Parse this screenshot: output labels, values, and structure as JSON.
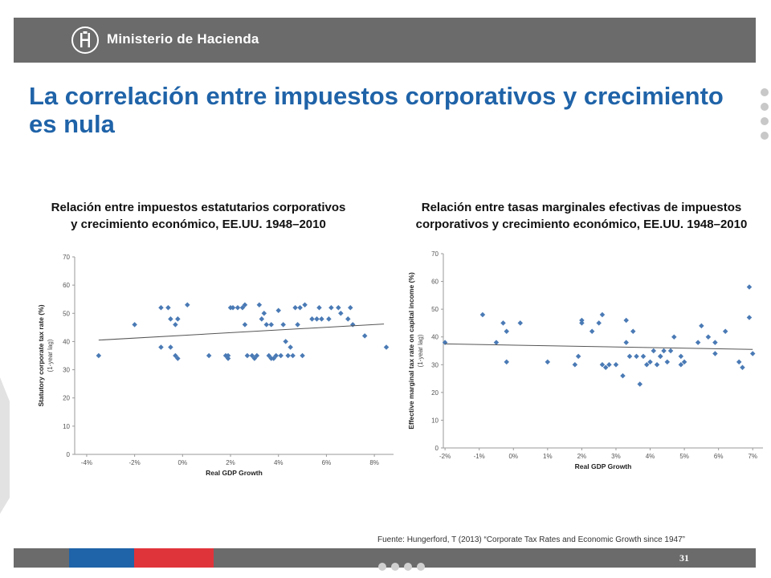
{
  "header": {
    "brand": "Ministerio de Hacienda",
    "logo_icon": "crest-icon",
    "bar_color": "#6b6b6b"
  },
  "slide": {
    "title": "La correlación entre impuestos corporativos y crecimiento es nula",
    "title_color": "#1f63a8",
    "page_number": "31"
  },
  "footer": {
    "source": "Fuente: Hungerford, T (2013) “Corporate Tax Rates and Economic Growth since 1947”",
    "stripe_colors": [
      "#1f63a8",
      "#e0343b"
    ]
  },
  "chart_data": [
    {
      "type": "scatter",
      "title": "Relación entre impuestos estatutarios corporativos y crecimiento económico, EE.UU. 1948–2010",
      "xlabel": "Real GDP Growth",
      "ylabel": "Statutory corporate tax rate (%)",
      "ylabel2": "(1-year lag)",
      "xlim": [
        -4.5,
        8.8
      ],
      "ylim": [
        0,
        70
      ],
      "xticks": [
        -4,
        -2,
        0,
        2,
        4,
        6,
        8
      ],
      "xtick_labels": [
        "-4%",
        "-2%",
        "0%",
        "2%",
        "4%",
        "6%",
        "8%"
      ],
      "yticks": [
        0,
        10,
        20,
        30,
        40,
        50,
        60,
        70
      ],
      "grid": false,
      "point_color": "#4a7ab5",
      "trend": {
        "x": [
          -3.5,
          8.4
        ],
        "y": [
          40.5,
          46.2
        ]
      },
      "points": [
        [
          -3.5,
          35
        ],
        [
          -2.0,
          46
        ],
        [
          -0.9,
          52
        ],
        [
          -0.6,
          52
        ],
        [
          -0.5,
          48
        ],
        [
          -0.3,
          46
        ],
        [
          -0.2,
          48
        ],
        [
          0.2,
          53
        ],
        [
          -0.9,
          38
        ],
        [
          -0.5,
          38
        ],
        [
          -0.3,
          35
        ],
        [
          -0.2,
          34
        ],
        [
          1.1,
          35
        ],
        [
          1.8,
          35
        ],
        [
          1.9,
          34
        ],
        [
          1.9,
          35
        ],
        [
          2.0,
          52
        ],
        [
          2.1,
          52
        ],
        [
          2.3,
          52
        ],
        [
          2.5,
          52
        ],
        [
          2.6,
          53
        ],
        [
          2.7,
          35
        ],
        [
          2.6,
          46
        ],
        [
          2.9,
          35
        ],
        [
          3.0,
          34
        ],
        [
          3.1,
          35
        ],
        [
          3.2,
          53
        ],
        [
          3.3,
          48
        ],
        [
          3.5,
          46
        ],
        [
          3.4,
          50
        ],
        [
          3.7,
          34
        ],
        [
          3.8,
          34
        ],
        [
          3.7,
          46
        ],
        [
          3.6,
          35
        ],
        [
          3.9,
          35
        ],
        [
          4.0,
          51
        ],
        [
          4.1,
          35
        ],
        [
          4.2,
          46
        ],
        [
          4.3,
          40
        ],
        [
          4.4,
          35
        ],
        [
          4.5,
          38
        ],
        [
          4.6,
          35
        ],
        [
          4.7,
          52
        ],
        [
          4.8,
          46
        ],
        [
          4.9,
          52
        ],
        [
          5.0,
          35
        ],
        [
          5.1,
          53
        ],
        [
          5.4,
          48
        ],
        [
          5.6,
          48
        ],
        [
          5.7,
          52
        ],
        [
          5.8,
          48
        ],
        [
          6.1,
          48
        ],
        [
          6.2,
          52
        ],
        [
          6.5,
          52
        ],
        [
          6.6,
          50
        ],
        [
          6.9,
          48
        ],
        [
          7.0,
          52
        ],
        [
          7.1,
          46
        ],
        [
          7.6,
          42
        ],
        [
          8.5,
          38
        ]
      ]
    },
    {
      "type": "scatter",
      "title": "Relación entre tasas marginales efectivas de impuestos corporativos y crecimiento económico, EE.UU. 1948–2010",
      "xlabel": "Real GDP Growth",
      "ylabel": "Effective marginal tax rate on capital income (%)",
      "ylabel2": "(1-year lag)",
      "xlim": [
        -2.05,
        7.3
      ],
      "ylim": [
        0,
        70
      ],
      "xticks": [
        -2,
        -1,
        0,
        1,
        2,
        3,
        4,
        5,
        6,
        7
      ],
      "xtick_labels": [
        "-2%",
        "-1%",
        "0%",
        "1%",
        "2%",
        "3%",
        "4%",
        "5%",
        "6%",
        "7%"
      ],
      "yticks": [
        0,
        10,
        20,
        30,
        40,
        50,
        60,
        70
      ],
      "grid": false,
      "point_color": "#4a7ab5",
      "trend": {
        "x": [
          -2.0,
          7.0
        ],
        "y": [
          37.5,
          35.5
        ]
      },
      "points": [
        [
          -2.0,
          38
        ],
        [
          -0.9,
          48
        ],
        [
          -0.5,
          38
        ],
        [
          -0.3,
          45
        ],
        [
          -0.2,
          42
        ],
        [
          -0.2,
          31
        ],
        [
          0.2,
          45
        ],
        [
          1.0,
          31
        ],
        [
          1.8,
          30
        ],
        [
          1.9,
          33
        ],
        [
          2.0,
          45
        ],
        [
          2.0,
          46
        ],
        [
          2.3,
          42
        ],
        [
          2.5,
          45
        ],
        [
          2.6,
          48
        ],
        [
          2.6,
          30
        ],
        [
          2.8,
          30
        ],
        [
          2.7,
          29
        ],
        [
          3.0,
          30
        ],
        [
          3.2,
          26
        ],
        [
          3.3,
          46
        ],
        [
          3.3,
          38
        ],
        [
          3.4,
          33
        ],
        [
          3.5,
          42
        ],
        [
          3.6,
          33
        ],
        [
          3.7,
          23
        ],
        [
          3.8,
          33
        ],
        [
          3.9,
          30
        ],
        [
          4.0,
          31
        ],
        [
          4.1,
          35
        ],
        [
          4.2,
          30
        ],
        [
          4.3,
          33
        ],
        [
          4.3,
          33
        ],
        [
          4.4,
          35
        ],
        [
          4.5,
          31
        ],
        [
          4.6,
          35
        ],
        [
          4.7,
          40
        ],
        [
          4.9,
          33
        ],
        [
          4.9,
          30
        ],
        [
          5.0,
          31
        ],
        [
          5.4,
          38
        ],
        [
          5.5,
          44
        ],
        [
          5.7,
          40
        ],
        [
          5.9,
          34
        ],
        [
          5.9,
          38
        ],
        [
          6.2,
          42
        ],
        [
          6.6,
          31
        ],
        [
          6.7,
          29
        ],
        [
          6.9,
          58
        ],
        [
          6.9,
          47
        ],
        [
          7.0,
          34
        ]
      ]
    }
  ]
}
